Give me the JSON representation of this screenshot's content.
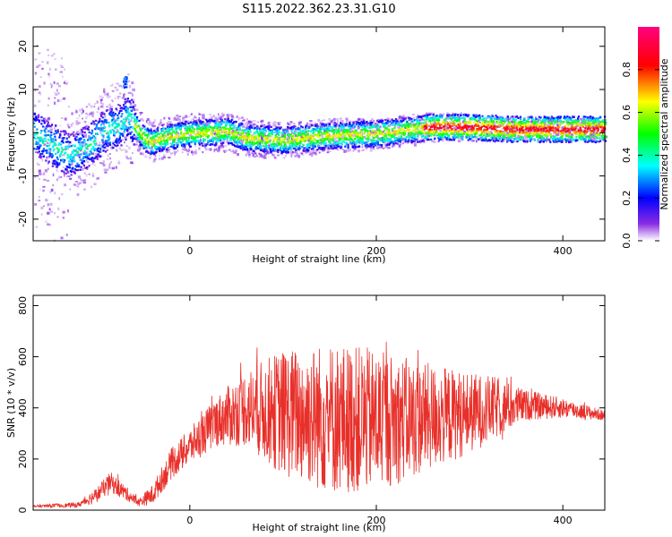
{
  "title": "S115.2022.362.23.31.G10",
  "chart_data": [
    {
      "type": "heatmap",
      "xlabel": "Height of straight line (km)",
      "ylabel": "Frequency (Hz)",
      "xlim": [
        -168,
        445
      ],
      "ylim": [
        -25,
        24.5
      ],
      "xticks": [
        0,
        200,
        400
      ],
      "yticks": [
        -20,
        -10,
        0,
        10,
        20
      ],
      "colorbar": {
        "label": "Normalized spectral amplitude",
        "range": [
          0,
          1
        ],
        "ticks": [
          0.0,
          0.2,
          0.4,
          0.6,
          0.8
        ]
      },
      "ridge": [
        {
          "x": -168,
          "y": 0
        },
        {
          "x": -130,
          "y": -5
        },
        {
          "x": -110,
          "y": -3
        },
        {
          "x": -90,
          "y": 1
        },
        {
          "x": -75,
          "y": 2
        },
        {
          "x": -67,
          "y": 4
        },
        {
          "x": -60,
          "y": 2
        },
        {
          "x": -50,
          "y": -1
        },
        {
          "x": -42,
          "y": -2
        },
        {
          "x": -30,
          "y": -1
        },
        {
          "x": 0,
          "y": 0
        },
        {
          "x": 40,
          "y": 0.5
        },
        {
          "x": 60,
          "y": -1
        },
        {
          "x": 100,
          "y": -1.5
        },
        {
          "x": 150,
          "y": -0.5
        },
        {
          "x": 200,
          "y": 0
        },
        {
          "x": 260,
          "y": 1.5
        },
        {
          "x": 300,
          "y": 1.5
        },
        {
          "x": 350,
          "y": 1
        },
        {
          "x": 400,
          "y": 1
        },
        {
          "x": 445,
          "y": 1
        }
      ]
    },
    {
      "type": "line",
      "xlabel": "Height of straight line (km)",
      "ylabel": "SNR (10 * v/v)",
      "xlim": [
        -168,
        445
      ],
      "ylim": [
        0,
        840
      ],
      "xticks": [
        0,
        200,
        400
      ],
      "yticks": [
        0,
        200,
        400,
        600,
        800
      ],
      "color": "#e8302a",
      "envelope": [
        {
          "x": -168,
          "mean": 15,
          "amp": 5
        },
        {
          "x": -120,
          "mean": 20,
          "amp": 10
        },
        {
          "x": -100,
          "mean": 60,
          "amp": 30
        },
        {
          "x": -85,
          "mean": 110,
          "amp": 40
        },
        {
          "x": -70,
          "mean": 70,
          "amp": 30
        },
        {
          "x": -55,
          "mean": 30,
          "amp": 15
        },
        {
          "x": -40,
          "mean": 60,
          "amp": 40
        },
        {
          "x": -20,
          "mean": 180,
          "amp": 60
        },
        {
          "x": 0,
          "mean": 250,
          "amp": 70
        },
        {
          "x": 30,
          "mean": 350,
          "amp": 100
        },
        {
          "x": 60,
          "mean": 400,
          "amp": 150
        },
        {
          "x": 100,
          "mean": 380,
          "amp": 250
        },
        {
          "x": 150,
          "mean": 360,
          "amp": 300
        },
        {
          "x": 200,
          "mean": 350,
          "amp": 280
        },
        {
          "x": 250,
          "mean": 360,
          "amp": 220
        },
        {
          "x": 300,
          "mean": 380,
          "amp": 160
        },
        {
          "x": 330,
          "mean": 400,
          "amp": 120
        },
        {
          "x": 360,
          "mean": 410,
          "amp": 60
        },
        {
          "x": 400,
          "mean": 400,
          "amp": 40
        },
        {
          "x": 445,
          "mean": 370,
          "amp": 20
        }
      ]
    }
  ]
}
